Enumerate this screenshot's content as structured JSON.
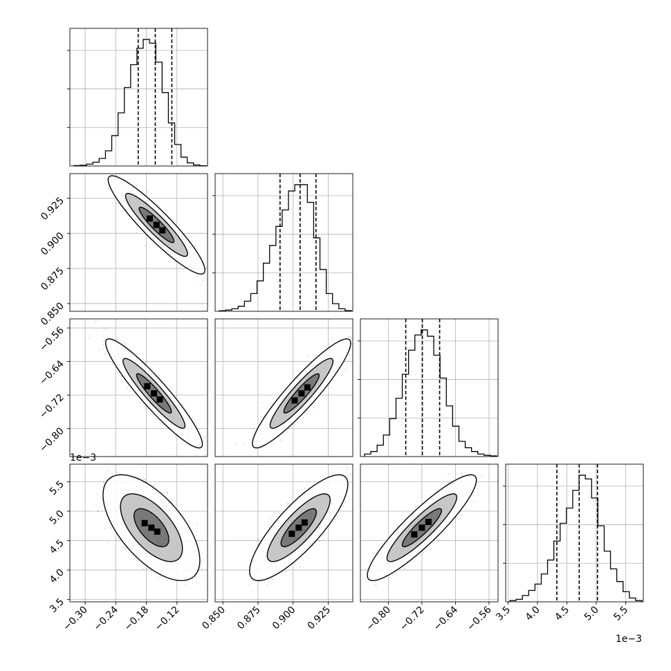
{
  "chart_data": {
    "type": "corner",
    "parameters": [
      {
        "ylim": [
          0,
          1.0
        ],
        "ticks": [
          -0.3,
          -0.24,
          -0.18,
          -0.12
        ],
        "tick_labels": [
          "−0.30",
          "−0.24",
          "−0.18",
          "−0.12"
        ],
        "range": [
          -0.33,
          -0.06
        ],
        "quantiles": [
          -0.196,
          -0.1625,
          -0.13
        ],
        "offset_label": ""
      },
      {
        "ticks": [
          0.85,
          0.875,
          0.9,
          0.925
        ],
        "tick_labels": [
          "0.850",
          "0.875",
          "0.900",
          "0.925"
        ],
        "range": [
          0.8445,
          0.9425
        ],
        "quantiles": [
          0.8907,
          0.905,
          0.9163
        ],
        "offset_label": ""
      },
      {
        "ticks": [
          -0.8,
          -0.72,
          -0.64,
          -0.56
        ],
        "tick_labels": [
          "−0.80",
          "−0.72",
          "−0.64",
          "−0.56"
        ],
        "range": [
          -0.8665,
          -0.5385
        ],
        "quantiles": [
          -0.7584,
          -0.7189,
          -0.6777
        ],
        "offset_label": "1e−3"
      },
      {
        "ticks": [
          3.5,
          4.0,
          4.5,
          5.0,
          5.5
        ],
        "tick_labels": [
          "3.5",
          "4.0",
          "4.5",
          "5.0",
          "5.5"
        ],
        "range": [
          3.46,
          5.8
        ],
        "quantiles": [
          4.33,
          4.71,
          5.02
        ],
        "offset_label": "1e−3"
      }
    ],
    "histograms": [
      [
        0.003,
        0.006,
        0.015,
        0.03,
        0.06,
        0.12,
        0.24,
        0.42,
        0.62,
        0.8,
        0.93,
        1.0,
        0.97,
        0.82,
        0.58,
        0.34,
        0.17,
        0.07,
        0.025,
        0.008,
        0.002
      ],
      [
        0.004,
        0.01,
        0.02,
        0.04,
        0.08,
        0.14,
        0.24,
        0.38,
        0.52,
        0.67,
        0.8,
        0.95,
        1.0,
        1.0,
        0.86,
        0.58,
        0.33,
        0.14,
        0.06,
        0.02,
        0.005
      ],
      [
        0.02,
        0.04,
        0.09,
        0.17,
        0.3,
        0.46,
        0.65,
        0.84,
        0.96,
        1.0,
        0.95,
        0.8,
        0.62,
        0.4,
        0.24,
        0.12,
        0.07,
        0.04,
        0.02,
        0.01,
        0.005
      ],
      [
        0.01,
        0.02,
        0.05,
        0.09,
        0.14,
        0.22,
        0.33,
        0.48,
        0.62,
        0.74,
        0.88,
        1.0,
        0.97,
        0.82,
        0.6,
        0.4,
        0.26,
        0.16,
        0.08,
        0.03,
        0.01
      ]
    ],
    "pairs": [
      {
        "row": 1,
        "col": 0,
        "mean": [
          -0.16,
          0.906
        ],
        "sd": [
          0.038,
          0.014
        ],
        "corr": -0.92
      },
      {
        "row": 2,
        "col": 0,
        "mean": [
          -0.165,
          -0.716
        ],
        "sd": [
          0.038,
          0.052
        ],
        "corr": -0.93
      },
      {
        "row": 2,
        "col": 1,
        "mean": [
          0.906,
          -0.716
        ],
        "sd": [
          0.014,
          0.052
        ],
        "corr": 0.92
      },
      {
        "row": 3,
        "col": 0,
        "mean": [
          -0.17,
          4.72
        ],
        "sd": [
          0.038,
          0.36
        ],
        "corr": -0.62
      },
      {
        "row": 3,
        "col": 1,
        "mean": [
          0.904,
          4.72
        ],
        "sd": [
          0.014,
          0.36
        ],
        "corr": 0.82
      },
      {
        "row": 3,
        "col": 2,
        "mean": [
          -0.72,
          4.72
        ],
        "sd": [
          0.052,
          0.36
        ],
        "corr": 0.9
      }
    ],
    "grid": true,
    "colors": {
      "axis": "#000000",
      "grid": "#b0b0b0",
      "points": "#000000"
    }
  }
}
